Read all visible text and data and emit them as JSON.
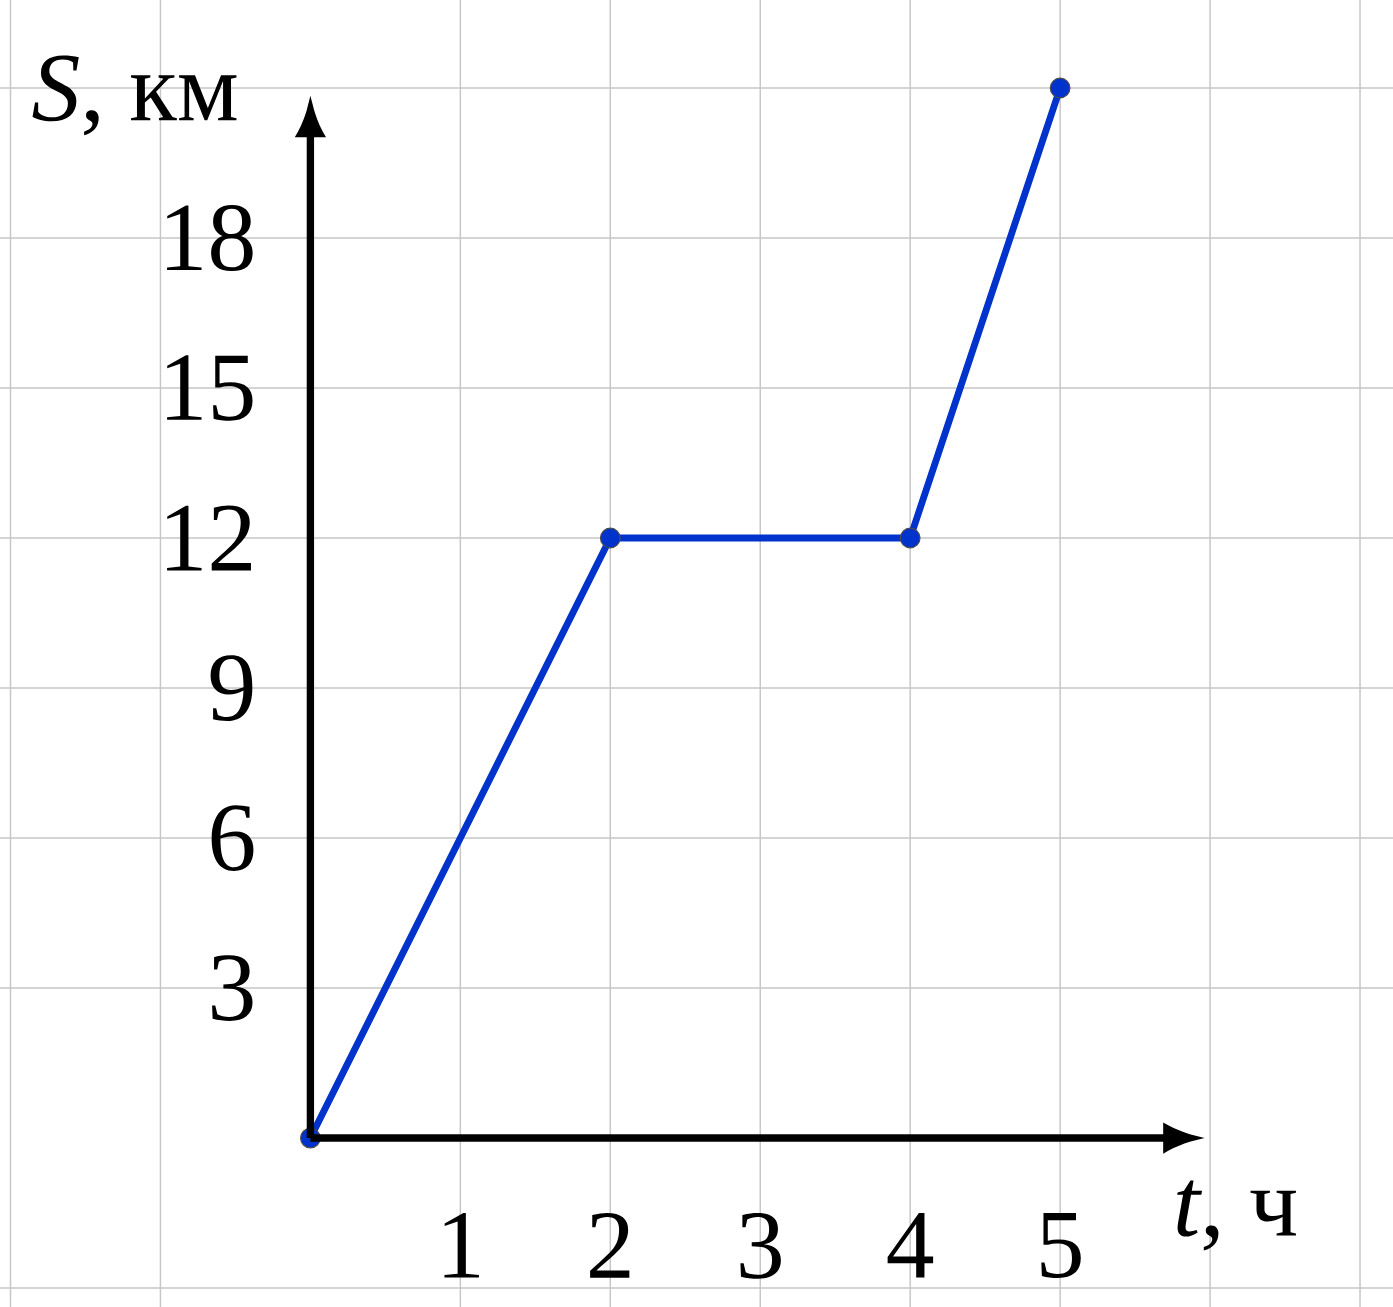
{
  "chart_data": {
    "type": "line",
    "xlabel": "*t*, ч",
    "ylabel": "*S*, км",
    "x": [
      0,
      2,
      4,
      5
    ],
    "series": [
      {
        "color": "#0033cc",
        "values": [
          0,
          12,
          12,
          21
        ]
      }
    ],
    "xlim": [
      -2.07,
      7.22
    ],
    "ylim": [
      -3.38,
      22.76
    ],
    "xticks": [
      {
        "value": -2,
        "label": null
      },
      {
        "value": -1,
        "label": null
      },
      {
        "value": 0,
        "label": null
      },
      1,
      2,
      3,
      4,
      5,
      {
        "value": 6,
        "label": null
      },
      {
        "value": 7,
        "label": null
      }
    ],
    "yticks": [
      {
        "value": -3,
        "label": null
      },
      {
        "value": 0,
        "label": null
      },
      3,
      6,
      9,
      12,
      15,
      18,
      {
        "value": 21,
        "label": null
      }
    ],
    "grid": true,
    "marker": "circle",
    "line_style": "solid"
  }
}
